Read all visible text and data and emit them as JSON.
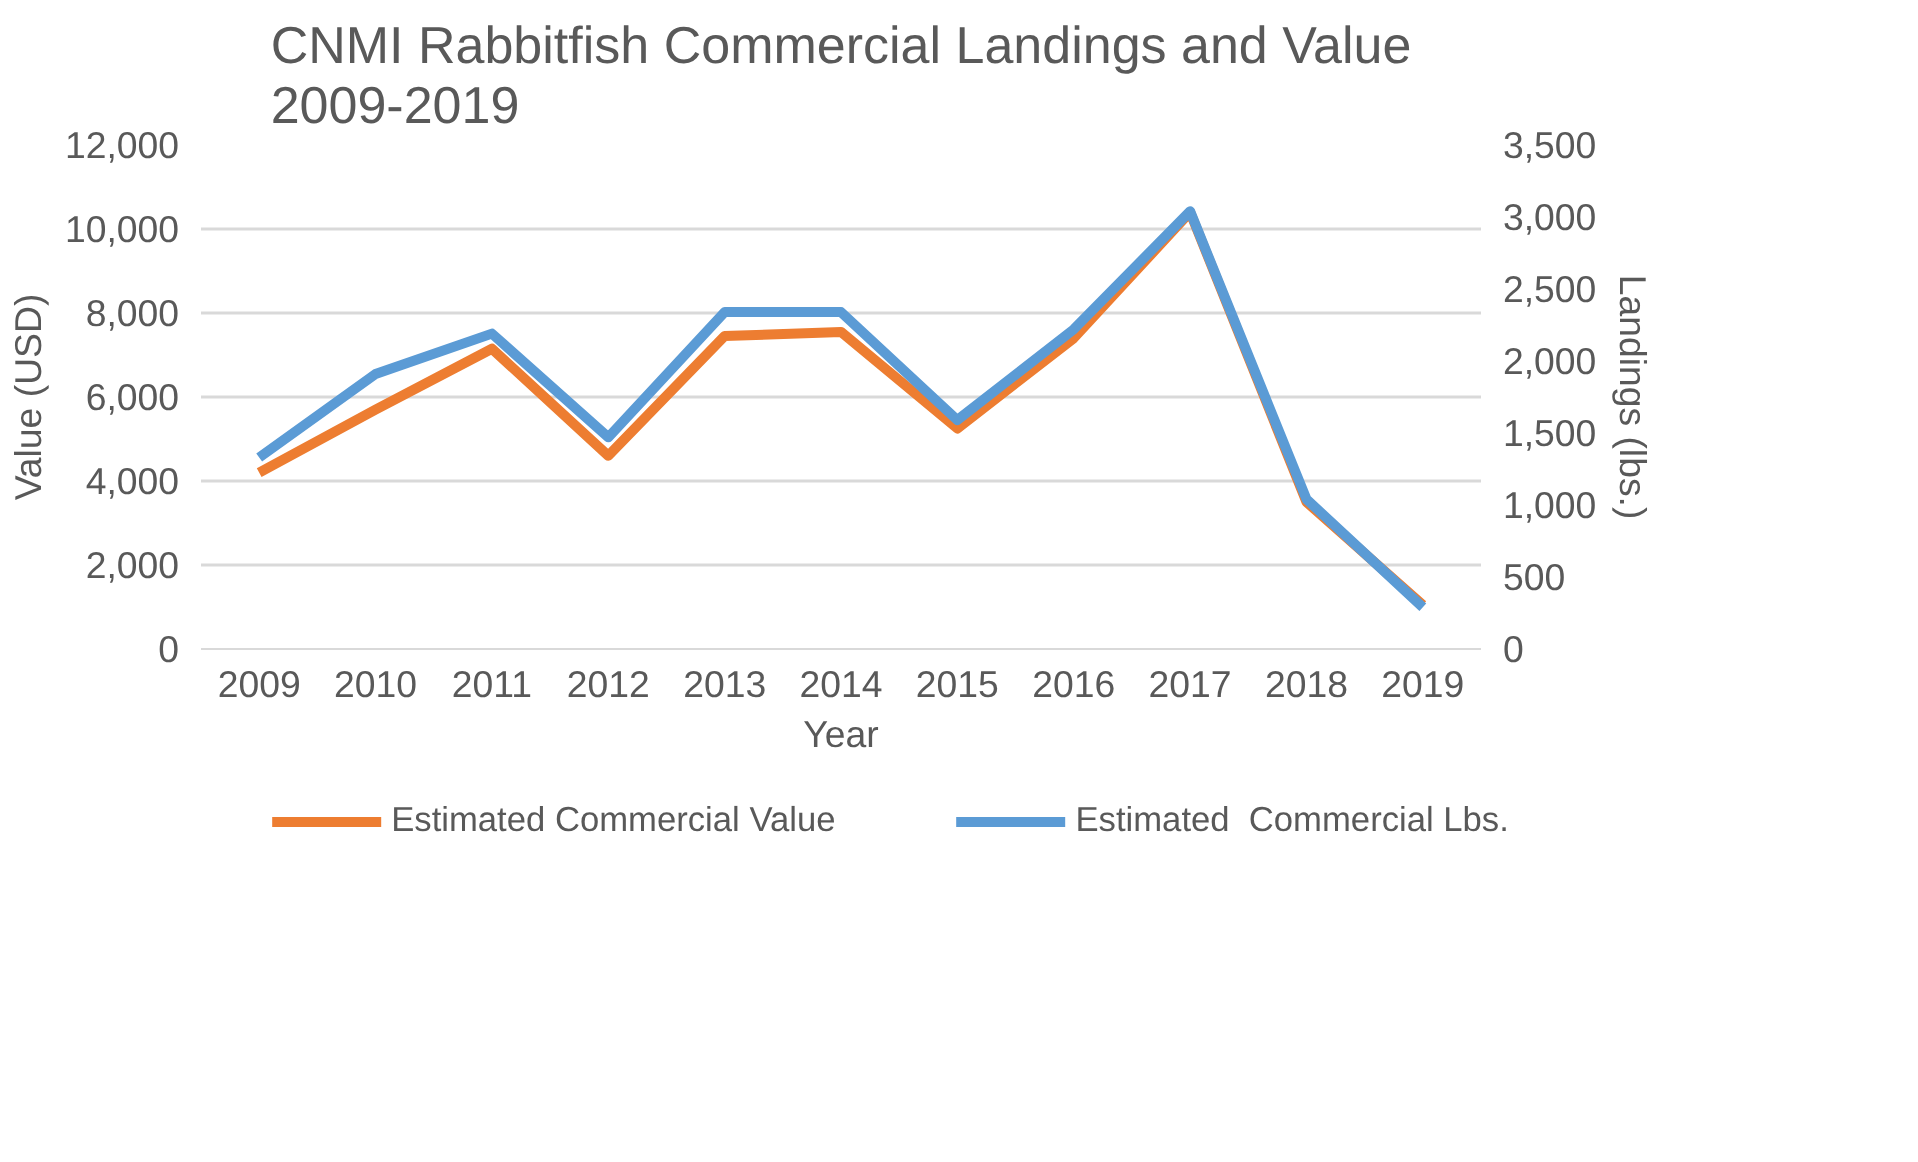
{
  "chart_data": {
    "type": "line",
    "title": "CNMI Rabbitfish Commercial Landings and Value 2009-2019",
    "xlabel": "Year",
    "ylabel": "Value (USD)",
    "y2label": "Landings (lbs.)",
    "categories": [
      "2009",
      "2010",
      "2011",
      "2012",
      "2013",
      "2014",
      "2015",
      "2016",
      "2017",
      "2018",
      "2019"
    ],
    "series": [
      {
        "name": "Estimated Commercial Value",
        "color": "#ed7d31",
        "values": [
          4200,
          5700,
          7150,
          4600,
          7450,
          7550,
          5250,
          7400,
          10400,
          3500,
          1050
        ]
      },
      {
        "name": "Estimated  Commercial Lbs.",
        "color": "#5b9bd5",
        "axis": "y2",
        "values": [
          1330,
          1910,
          2190,
          1470,
          2340,
          2340,
          1590,
          2220,
          3040,
          1040,
          290
        ]
      }
    ],
    "ylim": [
      0,
      12000
    ],
    "yticks": [
      {
        "value": 0,
        "label": "0"
      },
      {
        "value": 2000,
        "label": "2,000"
      },
      {
        "value": 4000,
        "label": "4,000"
      },
      {
        "value": 6000,
        "label": "6,000"
      },
      {
        "value": 8000,
        "label": "8,000"
      },
      {
        "value": 10000,
        "label": "10,000"
      },
      {
        "value": 12000,
        "label": "12,000"
      }
    ],
    "y2lim": [
      0,
      3500
    ],
    "y2ticks": [
      {
        "value": 0,
        "label": "0"
      },
      {
        "value": 500,
        "label": "500"
      },
      {
        "value": 1000,
        "label": "1,000"
      },
      {
        "value": 1500,
        "label": "1,500"
      },
      {
        "value": 2000,
        "label": "2,000"
      },
      {
        "value": 2500,
        "label": "2,500"
      },
      {
        "value": 3000,
        "label": "3,000"
      },
      {
        "value": 3500,
        "label": "3,500"
      }
    ],
    "grid": "y",
    "legend": "bottom",
    "marker": "none",
    "line_style": "solid"
  }
}
